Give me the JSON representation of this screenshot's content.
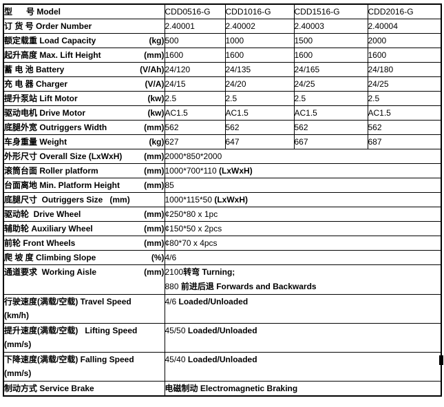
{
  "colors": {
    "background": "#ffffff",
    "border": "#000000",
    "text": "#000000"
  },
  "artifact": {
    "present": true
  },
  "table": {
    "rows": [
      {
        "label": "型      号 Model",
        "unit": "",
        "label_line2": "",
        "values": [
          "CDD0516-G",
          "CDD1016-G",
          "CDD1516-G",
          "CDD2016-G"
        ]
      },
      {
        "label": "订 货 号 Order Number",
        "unit": "",
        "label_line2": "",
        "values": [
          "2.40001",
          "2.40002",
          "2.40003",
          "2.40004"
        ]
      },
      {
        "label": "额定载重 Load Capacity",
        "unit": "(kg)",
        "label_line2": "",
        "values": [
          "500",
          "1000",
          "1500",
          "2000"
        ]
      },
      {
        "label": "起升高度 Max. Lift Height",
        "unit": "(mm)",
        "label_line2": "",
        "values": [
          "1600",
          "1600",
          "1600",
          "1600"
        ]
      },
      {
        "label": "蓄 电 池 Battery",
        "unit": "(V/Ah)",
        "label_line2": "",
        "values": [
          "24/120",
          "24/135",
          "24/165",
          "24/180"
        ]
      },
      {
        "label": "充 电 器 Charger",
        "unit": "(V/A)",
        "label_line2": "",
        "values": [
          "24/15",
          "24/20",
          "24/25",
          "24/25"
        ]
      },
      {
        "label": "提升泵站 Lift Motor",
        "unit": "(kw)",
        "label_line2": "",
        "values": [
          "2.5",
          "2.5",
          "2.5",
          "2.5"
        ]
      },
      {
        "label": "驱动电机 Drive Motor",
        "unit": "(kw)",
        "label_line2": "",
        "values": [
          "AC1.5",
          "AC1.5",
          "AC1.5",
          "AC1.5"
        ]
      },
      {
        "label": "底腿外宽 Outriggers Width",
        "unit": "(mm)",
        "label_line2": "",
        "values": [
          "562",
          "562",
          "562",
          "562"
        ]
      },
      {
        "label": "车身重量 Weight",
        "unit": "(kg)",
        "label_line2": "",
        "values": [
          "627",
          "647",
          "667",
          "687"
        ]
      },
      {
        "label": "外形尺寸 Overall Size (LxWxH)",
        "unit": "(mm)",
        "label_line2": "",
        "span_lines": [
          [
            {
              "t": "2000*850*2000",
              "b": false
            }
          ]
        ]
      },
      {
        "label": "滚筒台面 Roller platform",
        "unit": "(mm)",
        "label_line2": "",
        "span_lines": [
          [
            {
              "t": "1000*700*110 ",
              "b": false
            },
            {
              "t": "(LxWxH)",
              "b": true
            }
          ]
        ]
      },
      {
        "label": "台面离地 Min. Platform Height",
        "unit": "(mm)",
        "label_line2": "",
        "span_lines": [
          [
            {
              "t": "85",
              "b": false
            }
          ]
        ]
      },
      {
        "label": "底腿尺寸  Outriggers Size   (mm)",
        "unit": "",
        "label_line2": "",
        "span_lines": [
          [
            {
              "t": "1000*115*50 ",
              "b": false
            },
            {
              "t": "(LxWxH)",
              "b": true
            }
          ]
        ]
      },
      {
        "label": "驱动轮  Drive Wheel",
        "unit": "(mm)",
        "label_line2": "",
        "span_lines": [
          [
            {
              "t": "¢250*80 x 1pc",
              "b": false
            }
          ]
        ]
      },
      {
        "label": "辅助轮 Auxiliary Wheel",
        "unit": "(mm)",
        "label_line2": "",
        "span_lines": [
          [
            {
              "t": "¢150*50 x 2pcs",
              "b": false
            }
          ]
        ]
      },
      {
        "label": "前轮 Front Wheels",
        "unit": "(mm)",
        "label_line2": "",
        "span_lines": [
          [
            {
              "t": "¢80*70 x 4pcs",
              "b": false
            }
          ]
        ]
      },
      {
        "label": "爬 坡 度 Climbing Slope",
        "unit": "(%)",
        "label_line2": "",
        "span_lines": [
          [
            {
              "t": "4/6",
              "b": false
            }
          ]
        ]
      },
      {
        "label": "通道要求  Working Aisle",
        "unit": "(mm)",
        "label_line2": "",
        "span_lines": [
          [
            {
              "t": "2100",
              "b": false
            },
            {
              "t": "转弯 Turning;",
              "b": true
            }
          ],
          [
            {
              "t": "880 ",
              "b": false
            },
            {
              "t": "前进后退 Forwards and Backwards",
              "b": true
            }
          ]
        ]
      },
      {
        "label": "行驶速度(满载/空载) Travel Speed",
        "unit": "",
        "label_line2": "(km/h)",
        "span_lines": [
          [
            {
              "t": "4/6 ",
              "b": false
            },
            {
              "t": "Loaded/Unloaded",
              "b": true
            }
          ]
        ]
      },
      {
        "label": "提升速度(满载/空载)   Lifting Speed",
        "unit": "",
        "label_line2": "(mm/s)",
        "span_lines": [
          [
            {
              "t": "45/50 ",
              "b": false
            },
            {
              "t": "Loaded/Unloaded",
              "b": true
            }
          ]
        ]
      },
      {
        "label": "下降速度(满载/空载) Falling Speed",
        "unit": "",
        "label_line2": "(mm/s)",
        "span_lines": [
          [
            {
              "t": "45/40 ",
              "b": false
            },
            {
              "t": "Loaded/Unloaded",
              "b": true
            }
          ]
        ]
      },
      {
        "label": "制动方式 Service Brake",
        "unit": "",
        "label_line2": "",
        "span_lines": [
          [
            {
              "t": "电磁制动 Electromagnetic Braking",
              "b": true
            }
          ]
        ]
      }
    ]
  }
}
